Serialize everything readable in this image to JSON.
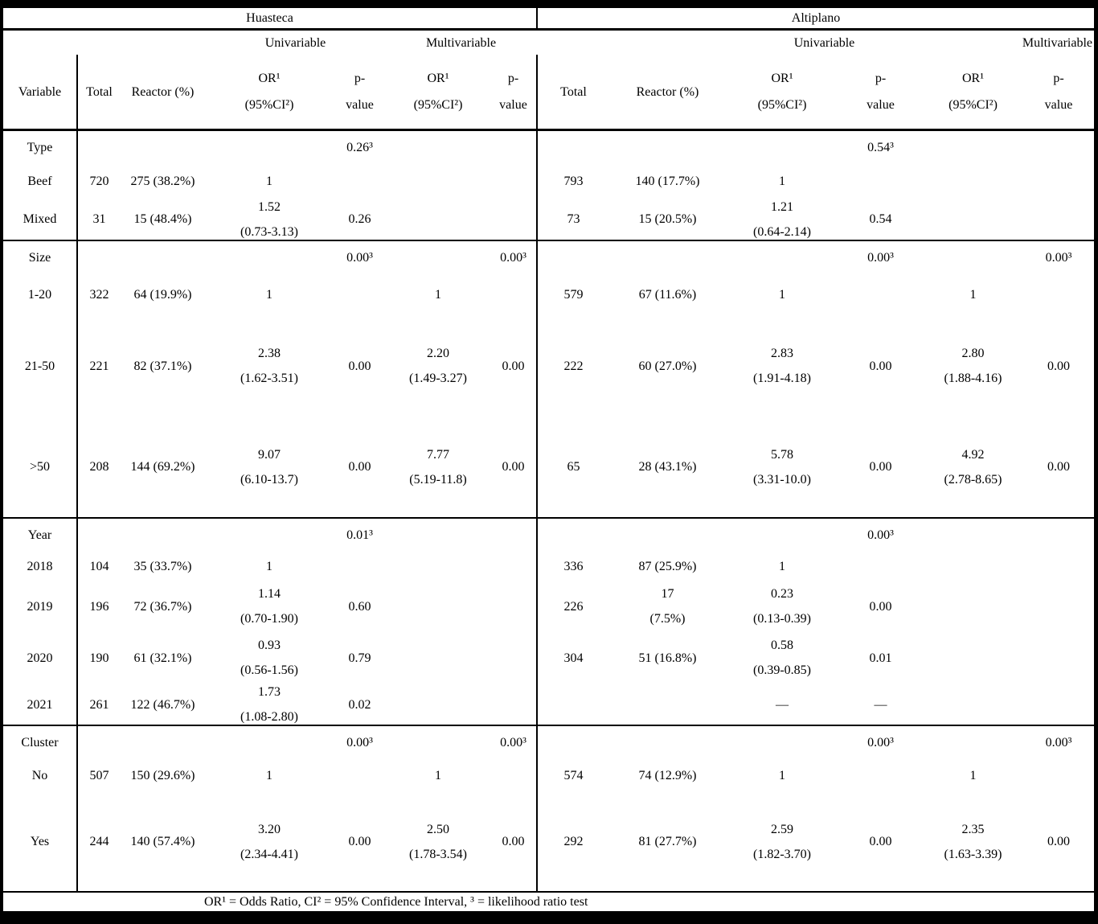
{
  "table": {
    "regions": [
      {
        "label": "Huasteca"
      },
      {
        "label": "Altiplano"
      }
    ],
    "model_headers": {
      "univariable": "Univariable",
      "multivariable": "Multivariable"
    },
    "columns": [
      "Variable",
      "Total",
      "Reactor (%)",
      "OR¹\n(95%CI²)",
      "p-\nvalue",
      "OR¹\n(95%CI²)",
      "p-\nvalue",
      "Total",
      "Reactor (%)",
      "OR¹\n(95%CI²)",
      "p-\nvalue",
      "OR¹\n(95%CI²)",
      "p-\nvalue"
    ],
    "sections": [
      {
        "label": "Type",
        "rows": [
          [
            "Type",
            "",
            "",
            "",
            "0.26³",
            "",
            "",
            "",
            "",
            "",
            "0.54³",
            "",
            ""
          ],
          [
            "Beef",
            "720",
            "275 (38.2%)",
            "1",
            "",
            "",
            "",
            "793",
            "140 (17.7%)",
            "1",
            "",
            "",
            ""
          ],
          [
            "Mixed",
            "31",
            "15 (48.4%)",
            "1.52\n(0.73-3.13)",
            "0.26",
            "",
            "",
            "73",
            "15 (20.5%)",
            "1.21\n(0.64-2.14)",
            "0.54",
            "",
            ""
          ]
        ]
      },
      {
        "label": "Size",
        "rows": [
          [
            "Size",
            "",
            "",
            "",
            "0.00³",
            "",
            "0.00³",
            "",
            "",
            "",
            "0.00³",
            "",
            "0.00³"
          ],
          [
            "1-20",
            "322",
            "64 (19.9%)",
            "1",
            "",
            "1",
            "",
            "579",
            "67 (11.6%)",
            "1",
            "",
            "1",
            ""
          ],
          [
            "21-50",
            "221",
            "82 (37.1%)",
            "2.38\n(1.62-3.51)",
            "0.00",
            "2.20\n(1.49-3.27)",
            "0.00",
            "222",
            "60 (27.0%)",
            "2.83\n(1.91-4.18)",
            "0.00",
            "2.80\n(1.88-4.16)",
            "0.00"
          ],
          [
            ">50",
            "208",
            "144 (69.2%)",
            "9.07\n(6.10-13.7)",
            "0.00",
            "7.77\n(5.19-11.8)",
            "0.00",
            "65",
            "28 (43.1%)",
            "5.78\n(3.31-10.0)",
            "0.00",
            "4.92\n(2.78-8.65)",
            "0.00"
          ]
        ]
      },
      {
        "label": "Year",
        "rows": [
          [
            "Year",
            "",
            "",
            "",
            "0.01³",
            "",
            "",
            "",
            "",
            "",
            "0.00³",
            "",
            ""
          ],
          [
            "2018",
            "104",
            "35 (33.7%)",
            "1",
            "",
            "",
            "",
            "336",
            "87 (25.9%)",
            "1",
            "",
            "",
            ""
          ],
          [
            "2019",
            "196",
            "72 (36.7%)",
            "1.14\n(0.70-1.90)",
            "0.60",
            "",
            "",
            "226",
            "17\n(7.5%)",
            "0.23\n(0.13-0.39)",
            "0.00",
            "",
            ""
          ],
          [
            "2020",
            "190",
            "61 (32.1%)",
            "0.93\n(0.56-1.56)",
            "0.79",
            "",
            "",
            "304",
            "51 (16.8%)",
            "0.58\n(0.39-0.85)",
            "0.01",
            "",
            ""
          ],
          [
            "2021",
            "261",
            "122 (46.7%)",
            "1.73\n(1.08-2.80)",
            "0.02",
            "",
            "",
            "",
            "",
            "—",
            "—",
            "",
            ""
          ]
        ]
      },
      {
        "label": "Cluster",
        "rows": [
          [
            "Cluster",
            "",
            "",
            "",
            "0.00³",
            "",
            "0.00³",
            "",
            "",
            "",
            "0.00³",
            "",
            "0.00³"
          ],
          [
            "No",
            "507",
            "150 (29.6%)",
            "1",
            "",
            "1",
            "",
            "574",
            "74 (12.9%)",
            "1",
            "",
            "1",
            ""
          ],
          [
            "Yes",
            "244",
            "140 (57.4%)",
            "3.20\n(2.34-4.41)",
            "0.00",
            "2.50\n(1.78-3.54)",
            "0.00",
            "292",
            "81 (27.7%)",
            "2.59\n(1.82-3.70)",
            "0.00",
            "2.35\n(1.63-3.39)",
            "0.00"
          ]
        ]
      }
    ],
    "footnote": "OR¹ = Odds Ratio, CI² = 95% Confidence Interval, ³ = likelihood ratio test"
  }
}
